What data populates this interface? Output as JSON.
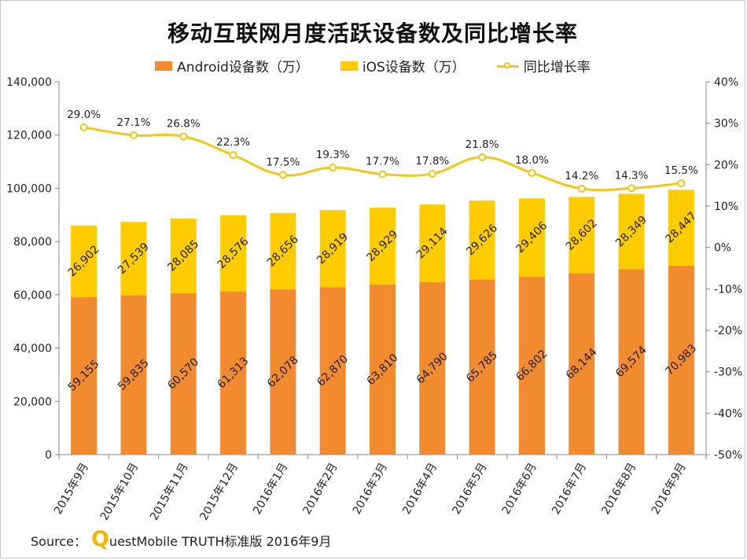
{
  "title": "移动互联网月度活跃设备数及同比增长率",
  "legend": {
    "android": "Android设备数（万）",
    "ios": "iOS设备数（万）",
    "growth": "同比增长率"
  },
  "source": {
    "prefix": "Source：",
    "logo_letter": "Q",
    "rest": "uestMobile TRUTH标准版 2016年9月"
  },
  "colors": {
    "android": "#F28A30",
    "ios": "#FFCC00",
    "growth_line": "#F5C518",
    "axis": "#888888"
  },
  "chart_data": {
    "type": "bar",
    "stacked": true,
    "categories": [
      "2015年9月",
      "2015年10月",
      "2015年11月",
      "2015年12月",
      "2016年1月",
      "2016年2月",
      "2016年3月",
      "2016年4月",
      "2016年5月",
      "2016年6月",
      "2016年7月",
      "2016年8月",
      "2016年9月"
    ],
    "series": [
      {
        "name": "Android设备数（万）",
        "type": "bar",
        "axis": "left",
        "values": [
          59155,
          59835,
          60570,
          61313,
          62078,
          62870,
          63810,
          64790,
          65785,
          66802,
          68144,
          69574,
          70983
        ],
        "labels": [
          "59,155",
          "59,835",
          "60,570",
          "61,313",
          "62,078",
          "62,870",
          "63,810",
          "64,790",
          "65,785",
          "66,802",
          "68,144",
          "69,574",
          "70,983"
        ]
      },
      {
        "name": "iOS设备数（万）",
        "type": "bar",
        "axis": "left",
        "values": [
          26902,
          27539,
          28085,
          28576,
          28656,
          28919,
          28929,
          29114,
          29626,
          29406,
          28602,
          28349,
          28447
        ],
        "labels": [
          "26,902",
          "27,539",
          "28,085",
          "28,576",
          "28,656",
          "28,919",
          "28,929",
          "29,114",
          "29,626",
          "29,406",
          "28,602",
          "28,349",
          "28,447"
        ]
      },
      {
        "name": "同比增长率",
        "type": "line",
        "axis": "right",
        "values": [
          29.0,
          27.1,
          26.8,
          22.3,
          17.5,
          19.3,
          17.7,
          17.8,
          21.8,
          18.0,
          14.2,
          14.3,
          15.5
        ],
        "labels": [
          "29.0%",
          "27.1%",
          "26.8%",
          "22.3%",
          "17.5%",
          "19.3%",
          "17.7%",
          "17.8%",
          "21.8%",
          "18.0%",
          "14.2%",
          "14.3%",
          "15.5%"
        ]
      }
    ],
    "y_left": {
      "lim": [
        0,
        140000
      ],
      "ticks": [
        0,
        20000,
        40000,
        60000,
        80000,
        100000,
        120000,
        140000
      ],
      "tick_labels": [
        "0",
        "20,000",
        "40,000",
        "60,000",
        "80,000",
        "100,000",
        "120,000",
        "140,000"
      ]
    },
    "y_right": {
      "lim": [
        -50,
        40
      ],
      "ticks": [
        -50,
        -40,
        -30,
        -20,
        -10,
        0,
        10,
        20,
        30,
        40
      ],
      "tick_labels": [
        "-50%",
        "-40%",
        "-30%",
        "-20%",
        "-10%",
        "0%",
        "10%",
        "20%",
        "30%",
        "40%"
      ]
    },
    "grid": false,
    "legend_position": "top"
  }
}
